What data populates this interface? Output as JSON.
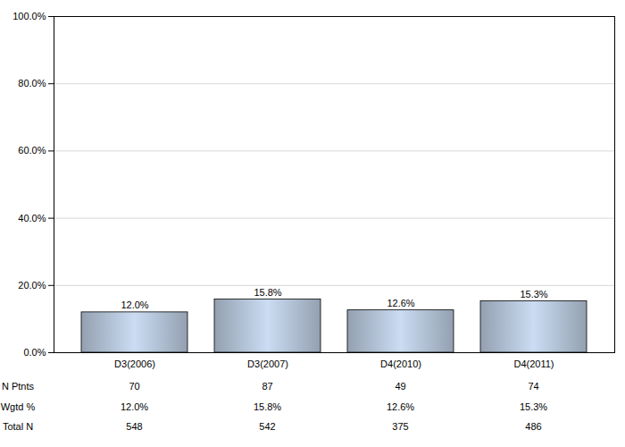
{
  "chart_data": {
    "type": "bar",
    "categories": [
      "D3(2006)",
      "D3(2007)",
      "D4(2010)",
      "D4(2011)"
    ],
    "values": [
      12.0,
      15.8,
      12.6,
      15.3
    ],
    "value_labels": [
      "12.0%",
      "15.8%",
      "12.6%",
      "15.3%"
    ],
    "data_labels": true,
    "color": "#a4b2c4",
    "ylim": [
      0,
      100
    ],
    "yticks": [
      {
        "value": 0,
        "label": "0.0%"
      },
      {
        "value": 20,
        "label": "20.0%"
      },
      {
        "value": 40,
        "label": "40.0%"
      },
      {
        "value": 60,
        "label": "60.0%"
      },
      {
        "value": 80,
        "label": "80.0%"
      },
      {
        "value": 100,
        "label": "100.0%"
      }
    ],
    "grid": true,
    "table": [
      {
        "label": "N Ptnts",
        "values": [
          70,
          87,
          49,
          74
        ]
      },
      {
        "label": "Wgtd %",
        "values": [
          12.0,
          15.8,
          12.6,
          15.3
        ],
        "value_labels": [
          "12.0%",
          "15.8%",
          "12.6%",
          "15.3%"
        ]
      },
      {
        "label": "Total N",
        "values": [
          548,
          542,
          375,
          486
        ]
      }
    ]
  }
}
